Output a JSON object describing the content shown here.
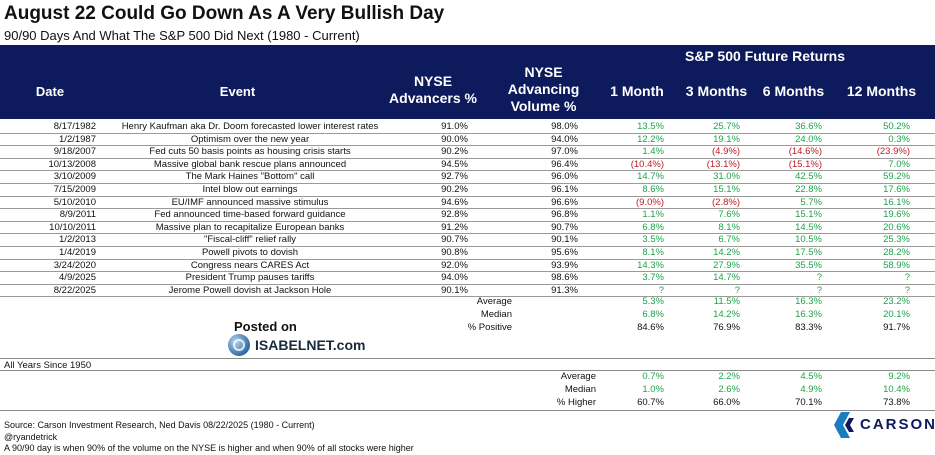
{
  "title": "August 22 Could Go Down As A Very Bullish Day",
  "subtitle": "90/90 Days And What The S&P 500 Did Next (1980 - Current)",
  "header": {
    "group_label": "S&P 500 Future Returns",
    "date": "Date",
    "event": "Event",
    "nyse_adv_line1": "NYSE",
    "nyse_adv_line2": "Advancers %",
    "nyse_vol_line1": "NYSE",
    "nyse_vol_line2": "Advancing",
    "nyse_vol_line3": "Volume %",
    "m1": "1 Month",
    "m3": "3 Months",
    "m6": "6 Months",
    "m12": "12 Months"
  },
  "rows": [
    {
      "date": "8/17/1982",
      "event": "Henry Kaufman aka Dr. Doom forecasted lower interest rates",
      "adv": "91.0%",
      "vol": "98.0%",
      "m1": "13.5%",
      "m3": "25.7%",
      "m6": "36.6%",
      "m12": "50.2%"
    },
    {
      "date": "1/2/1987",
      "event": "Optimism over the new year",
      "adv": "90.0%",
      "vol": "94.0%",
      "m1": "12.2%",
      "m3": "19.1%",
      "m6": "24.0%",
      "m12": "0.3%"
    },
    {
      "date": "9/18/2007",
      "event": "Fed cuts 50 basis points as housing crisis starts",
      "adv": "90.2%",
      "vol": "97.0%",
      "m1": "1.4%",
      "m3": "(4.9%)",
      "m6": "(14.6%)",
      "m12": "(23.9%)"
    },
    {
      "date": "10/13/2008",
      "event": "Massive global bank rescue plans announced",
      "adv": "94.5%",
      "vol": "96.4%",
      "m1": "(10.4%)",
      "m3": "(13.1%)",
      "m6": "(15.1%)",
      "m12": "7.0%"
    },
    {
      "date": "3/10/2009",
      "event": "The Mark Haines \"Bottom\" call",
      "adv": "92.7%",
      "vol": "96.0%",
      "m1": "14.7%",
      "m3": "31.0%",
      "m6": "42.5%",
      "m12": "59.2%"
    },
    {
      "date": "7/15/2009",
      "event": "Intel blow out earnings",
      "adv": "90.2%",
      "vol": "96.1%",
      "m1": "8.6%",
      "m3": "15.1%",
      "m6": "22.8%",
      "m12": "17.6%"
    },
    {
      "date": "5/10/2010",
      "event": "EU/IMF announced massive stimulus",
      "adv": "94.6%",
      "vol": "96.6%",
      "m1": "(9.0%)",
      "m3": "(2.8%)",
      "m6": "5.7%",
      "m12": "16.1%"
    },
    {
      "date": "8/9/2011",
      "event": "Fed announced time-based forward guidance",
      "adv": "92.8%",
      "vol": "96.8%",
      "m1": "1.1%",
      "m3": "7.6%",
      "m6": "15.1%",
      "m12": "19.6%"
    },
    {
      "date": "10/10/2011",
      "event": "Massive plan to recapitalize European banks",
      "adv": "91.2%",
      "vol": "90.7%",
      "m1": "6.8%",
      "m3": "8.1%",
      "m6": "14.5%",
      "m12": "20.6%"
    },
    {
      "date": "1/2/2013",
      "event": "\"Fiscal-cliff\" relief rally",
      "adv": "90.7%",
      "vol": "90.1%",
      "m1": "3.5%",
      "m3": "6.7%",
      "m6": "10.5%",
      "m12": "25.3%"
    },
    {
      "date": "1/4/2019",
      "event": "Powell pivots to dovish",
      "adv": "90.8%",
      "vol": "95.6%",
      "m1": "8.1%",
      "m3": "14.2%",
      "m6": "17.5%",
      "m12": "28.2%"
    },
    {
      "date": "3/24/2020",
      "event": "Congress nears CARES Act",
      "adv": "92.0%",
      "vol": "93.9%",
      "m1": "14.3%",
      "m3": "27.9%",
      "m6": "35.5%",
      "m12": "58.9%"
    },
    {
      "date": "4/9/2025",
      "event": "President Trump pauses tariffs",
      "adv": "94.0%",
      "vol": "98.6%",
      "m1": "3.7%",
      "m3": "14.7%",
      "m6": "?",
      "m12": "?"
    },
    {
      "date": "8/22/2025",
      "event": "Jerome Powell dovish at Jackson Hole",
      "adv": "90.1%",
      "vol": "91.3%",
      "m1": "?",
      "m3": "?",
      "m6": "?",
      "m12": "?"
    }
  ],
  "summary": [
    {
      "label": "Average",
      "m1": "5.3%",
      "m3": "11.5%",
      "m6": "16.3%",
      "m12": "23.2%"
    },
    {
      "label": "Median",
      "m1": "6.8%",
      "m3": "14.2%",
      "m6": "16.3%",
      "m12": "20.1%"
    },
    {
      "label": "% Positive",
      "m1": "84.6%",
      "m3": "76.9%",
      "m6": "83.3%",
      "m12": "91.7%"
    }
  ],
  "posted_on": "Posted on",
  "isabelnet": "ISABELNET.com",
  "all_years_label": "All Years Since 1950",
  "all_years": [
    {
      "label": "Average",
      "m1": "0.7%",
      "m3": "2.2%",
      "m6": "4.5%",
      "m12": "9.2%"
    },
    {
      "label": "Median",
      "m1": "1.0%",
      "m3": "2.6%",
      "m6": "4.9%",
      "m12": "10.4%"
    },
    {
      "label": "% Higher",
      "m1": "60.7%",
      "m3": "66.0%",
      "m6": "70.1%",
      "m12": "73.8%"
    }
  ],
  "footer": {
    "source": "Source: Carson Investment Research, Ned Davis 08/22/2025 (1980 - Current)",
    "handle": "@ryandetrick",
    "note": "A 90/90 day is when 90% of the volume on the NYSE is higher and when 90% of all stocks were higher"
  },
  "carson": "CARSON",
  "colors": {
    "header_bg": "#0d1b5c",
    "positive": "#1fa34a",
    "negative": "#c0191e"
  }
}
